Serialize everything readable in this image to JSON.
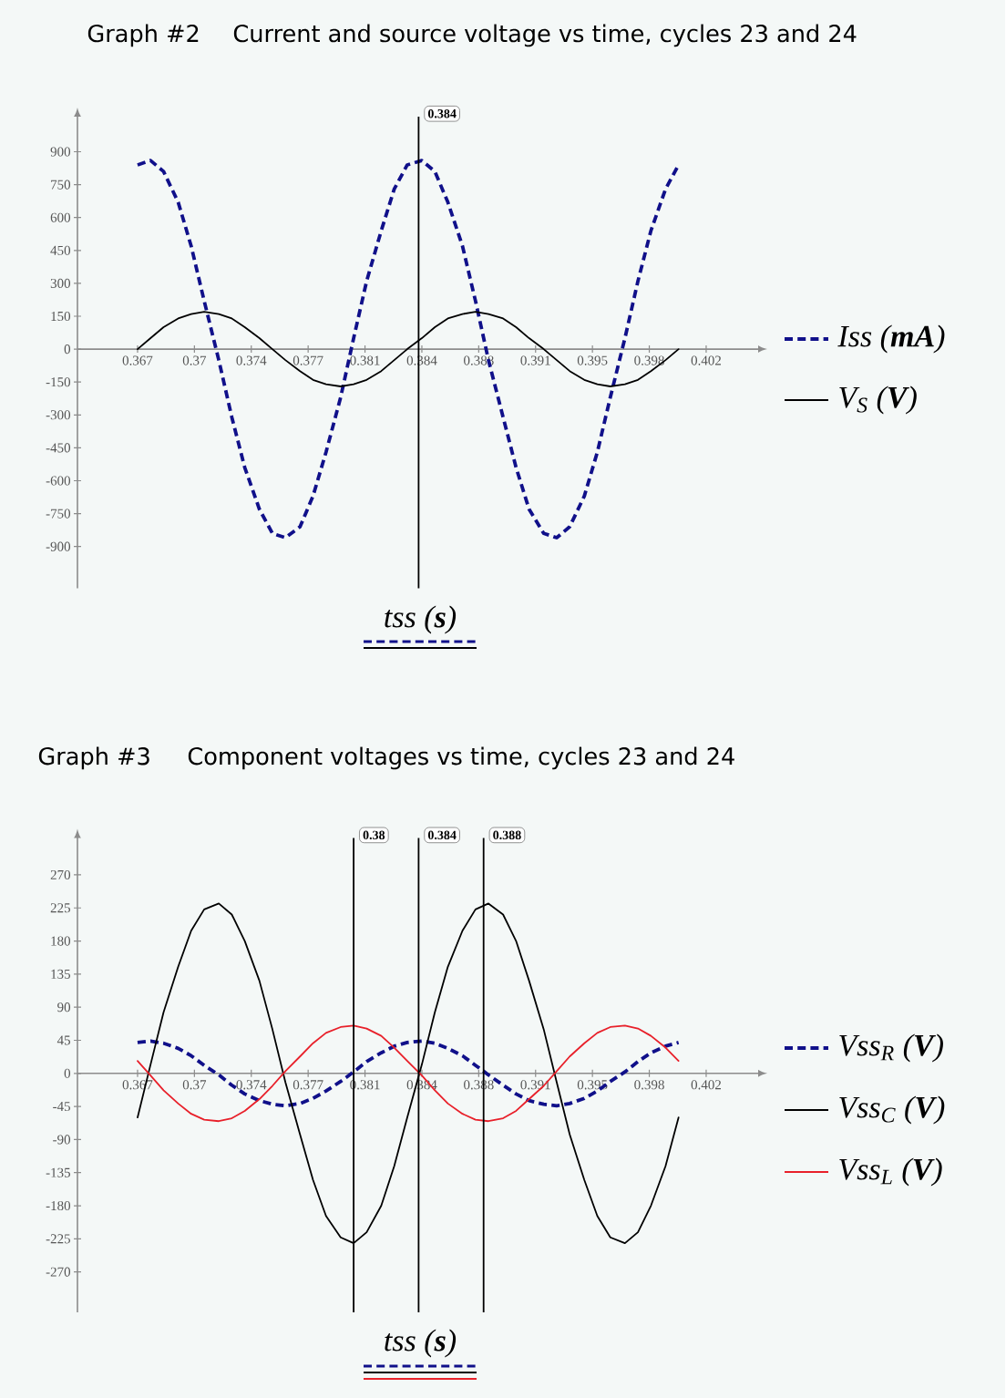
{
  "chart_data": [
    {
      "type": "line",
      "title": "Graph #2",
      "subtitle": "Current and source voltage vs time, cycles 23 and 24",
      "xlabel": "tss (**s**)",
      "x": [
        0.3667,
        0.3675,
        0.3683,
        0.3692,
        0.37,
        0.3708,
        0.3717,
        0.3725,
        0.3733,
        0.3742,
        0.375,
        0.3758,
        0.3767,
        0.3775,
        0.3783,
        0.3792,
        0.38,
        0.3808,
        0.3817,
        0.3825,
        0.3833,
        0.3842,
        0.385,
        0.3858,
        0.3867,
        0.3875,
        0.3883,
        0.3892,
        0.39,
        0.3908,
        0.3917,
        0.3925,
        0.3933,
        0.3942,
        0.395,
        0.3958,
        0.3967,
        0.3975,
        0.3983,
        0.3992,
        0.4
      ],
      "series": [
        {
          "name": "Iss (**mA**)",
          "color": "#10108a",
          "line_style": "dashed",
          "values": [
            840,
            860,
            810,
            670,
            470,
            220,
            -50,
            -310,
            -540,
            -730,
            -840,
            -860,
            -810,
            -670,
            -470,
            -220,
            50,
            310,
            540,
            730,
            840,
            860,
            810,
            670,
            470,
            220,
            -50,
            -310,
            -540,
            -730,
            -840,
            -860,
            -810,
            -670,
            -470,
            -220,
            50,
            310,
            540,
            730,
            840
          ]
        },
        {
          "name": "V$_{S}$ (**V**)",
          "color": "#000000",
          "line_style": "solid",
          "values": [
            0,
            50,
            100,
            140,
            160,
            170,
            160,
            140,
            100,
            50,
            0,
            -50,
            -100,
            -140,
            -160,
            -170,
            -160,
            -140,
            -100,
            -50,
            0,
            50,
            100,
            140,
            160,
            170,
            160,
            140,
            100,
            50,
            0,
            -50,
            -100,
            -140,
            -160,
            -170,
            -160,
            -140,
            -100,
            -50,
            0
          ]
        }
      ],
      "xlim": [
        0.363,
        0.4049
      ],
      "xticks": [
        {
          "value": 0.3667,
          "label": "0.367"
        },
        {
          "value": 0.3702,
          "label": "0.37"
        },
        {
          "value": 0.3737,
          "label": "0.374"
        },
        {
          "value": 0.3772,
          "label": "0.377"
        },
        {
          "value": 0.3807,
          "label": "0.381"
        },
        {
          "value": 0.3842,
          "label": "0.384"
        },
        {
          "value": 0.3877,
          "label": "0.388"
        },
        {
          "value": 0.3912,
          "label": "0.391"
        },
        {
          "value": 0.3947,
          "label": "0.395"
        },
        {
          "value": 0.3982,
          "label": "0.398"
        },
        {
          "value": 0.4017,
          "label": "0.402"
        }
      ],
      "ylim": [
        -1090,
        1060
      ],
      "yticks": [
        -900,
        -750,
        -600,
        -450,
        -300,
        -150,
        0,
        150,
        300,
        450,
        600,
        750,
        900
      ],
      "ref_lines": [
        {
          "axis": "x",
          "value": 0.384,
          "label": "0.384"
        }
      ],
      "legend": "right"
    },
    {
      "type": "line",
      "title": "Graph #3",
      "subtitle": "Component voltages vs time, cycles 23 and 24",
      "xlabel": "tss (**s**)",
      "x": [
        0.3667,
        0.3675,
        0.3683,
        0.3692,
        0.37,
        0.3708,
        0.3717,
        0.3725,
        0.3733,
        0.3742,
        0.375,
        0.3758,
        0.3767,
        0.3775,
        0.3783,
        0.3792,
        0.38,
        0.3808,
        0.3817,
        0.3825,
        0.3833,
        0.3842,
        0.385,
        0.3858,
        0.3867,
        0.3875,
        0.3883,
        0.3892,
        0.39,
        0.3908,
        0.3917,
        0.3925,
        0.3933,
        0.3942,
        0.395,
        0.3958,
        0.3967,
        0.3975,
        0.3983,
        0.3992,
        0.4
      ],
      "series": [
        {
          "name": "Vss$_{R}$ (**V**)",
          "color": "#10108a",
          "line_style": "dashed",
          "values": [
            42,
            44,
            41,
            34,
            24,
            11,
            -2,
            -16,
            -28,
            -37,
            -42,
            -44,
            -41,
            -34,
            -24,
            -11,
            2,
            16,
            28,
            37,
            42,
            44,
            41,
            34,
            24,
            11,
            -2,
            -16,
            -28,
            -37,
            -42,
            -44,
            -41,
            -34,
            -24,
            -11,
            2,
            16,
            28,
            37,
            42
          ]
        },
        {
          "name": "Vss$_{C}$ (**V**)",
          "color": "#000000",
          "line_style": "solid",
          "values": [
            -60,
            12,
            83,
            145,
            194,
            223,
            231,
            216,
            180,
            126,
            60,
            -12,
            -83,
            -145,
            -194,
            -223,
            -231,
            -216,
            -180,
            -126,
            -60,
            12,
            83,
            145,
            194,
            223,
            231,
            216,
            180,
            126,
            60,
            -12,
            -83,
            -145,
            -194,
            -223,
            -231,
            -216,
            -180,
            -126,
            -60
          ]
        },
        {
          "name": "Vss$_{L}$ (**V**)",
          "color": "#e8202a",
          "line_style": "solid",
          "values": [
            17,
            -3,
            -23,
            -41,
            -55,
            -63,
            -65,
            -61,
            -51,
            -35,
            -17,
            3,
            23,
            41,
            55,
            63,
            65,
            61,
            51,
            35,
            17,
            -3,
            -23,
            -41,
            -55,
            -63,
            -65,
            -61,
            -51,
            -35,
            -17,
            3,
            23,
            41,
            55,
            63,
            65,
            61,
            51,
            35,
            17
          ]
        }
      ],
      "xlim": [
        0.363,
        0.4049
      ],
      "xticks": [
        {
          "value": 0.3667,
          "label": "0.367"
        },
        {
          "value": 0.3702,
          "label": "0.37"
        },
        {
          "value": 0.3737,
          "label": "0.374"
        },
        {
          "value": 0.3772,
          "label": "0.377"
        },
        {
          "value": 0.3807,
          "label": "0.381"
        },
        {
          "value": 0.3842,
          "label": "0.384"
        },
        {
          "value": 0.3877,
          "label": "0.388"
        },
        {
          "value": 0.3912,
          "label": "0.391"
        },
        {
          "value": 0.3947,
          "label": "0.395"
        },
        {
          "value": 0.3982,
          "label": "0.398"
        },
        {
          "value": 0.4017,
          "label": "0.402"
        }
      ],
      "ylim": [
        -325,
        320
      ],
      "yticks": [
        -270,
        -225,
        -180,
        -135,
        -90,
        -45,
        0,
        45,
        90,
        135,
        180,
        225,
        270
      ],
      "ref_lines": [
        {
          "axis": "x",
          "value": 0.38,
          "label": "0.38"
        },
        {
          "axis": "x",
          "value": 0.384,
          "label": "0.384"
        },
        {
          "axis": "x",
          "value": 0.388,
          "label": "0.388"
        }
      ],
      "legend": "right"
    }
  ]
}
